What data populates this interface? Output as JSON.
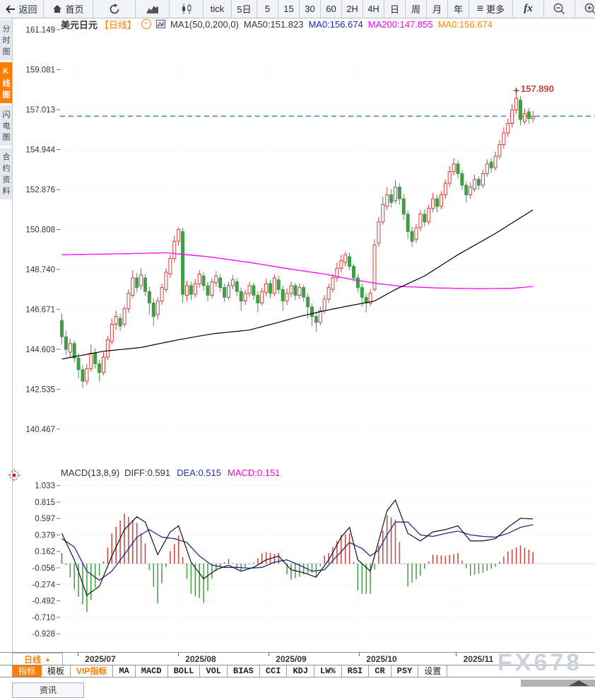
{
  "toolbar": {
    "back": "返回",
    "home": "首页",
    "periods": [
      "tick",
      "5日",
      "5",
      "15",
      "30",
      "60",
      "2H",
      "4H",
      "日",
      "周",
      "月",
      "年"
    ],
    "more": "更多",
    "fx": "fx"
  },
  "sidebar": {
    "items": [
      {
        "id": "time-share",
        "label": "分时图",
        "active": false
      },
      {
        "id": "kline",
        "label": "K线图",
        "active": true
      },
      {
        "id": "lightning",
        "label": "闪电图",
        "active": false
      },
      {
        "id": "contract-info",
        "label": "合约资料",
        "active": false
      }
    ]
  },
  "legend": {
    "symbol": "美元日元",
    "period_tag": "【日线】",
    "ma_settings": "MA1(50,0,200,0)",
    "ma50": "MA50:151.823",
    "ma0_blue": "MA0:156.674",
    "ma200": "MA200:147.855",
    "ma0_orange": "MA0:156.674"
  },
  "macd_legend": {
    "title": "MACD(13,8,9)",
    "diff": "DIFF:0.591",
    "dea": "DEA:0.515",
    "macd": "MACD:0.151"
  },
  "price_marker": "157.890",
  "watermark": "FX678",
  "bottom": {
    "period_selector": "日线",
    "tabs": [
      {
        "id": "indicator",
        "label": "指标",
        "type": "active"
      },
      {
        "id": "template",
        "label": "模板",
        "type": "cn"
      },
      {
        "id": "vip-indicator",
        "label": "VIP指标",
        "type": "vip"
      },
      {
        "id": "ma",
        "label": "MA",
        "type": "en"
      },
      {
        "id": "macd",
        "label": "MACD",
        "type": "en"
      },
      {
        "id": "boll",
        "label": "BOLL",
        "type": "en"
      },
      {
        "id": "vol",
        "label": "VOL",
        "type": "en"
      },
      {
        "id": "bias",
        "label": "BIAS",
        "type": "en"
      },
      {
        "id": "cci",
        "label": "CCI",
        "type": "en"
      },
      {
        "id": "kdj",
        "label": "KDJ",
        "type": "en"
      },
      {
        "id": "lw",
        "label": "LW%",
        "type": "en"
      },
      {
        "id": "rsi",
        "label": "RSI",
        "type": "en"
      },
      {
        "id": "cr",
        "label": "CR",
        "type": "en"
      },
      {
        "id": "psy",
        "label": "PSY",
        "type": "en"
      },
      {
        "id": "settings",
        "label": "设置",
        "type": "cn"
      }
    ],
    "news_tab": "资讯"
  },
  "colors": {
    "up": "#c9413f",
    "down": "#3f9e46",
    "ma50": "#000000",
    "ma200": "#ff00ff",
    "diff": "#111111",
    "dea": "#1c2f8c",
    "price_line": "#2b7fd4",
    "accent": "#ff7e00",
    "marker": "#c74440"
  },
  "chart_data": {
    "type": "candlestick_with_macd",
    "symbol": "美元日元 (USD/JPY)",
    "interval": "日线 daily",
    "current_price": 156.674,
    "high_marker": {
      "index": 109,
      "price": 157.89
    },
    "y_ticks": [
      "161.149",
      "159.081",
      "157.013",
      "154.944",
      "152.876",
      "150.808",
      "148.740",
      "146.671",
      "144.603",
      "142.535",
      "140.467"
    ],
    "macd_ticks": [
      "1.033",
      "0.815",
      "0.597",
      "0.379",
      "0.162",
      "-0.056",
      "-0.274",
      "-0.492",
      "-0.710",
      "-0.928"
    ],
    "months": [
      "2025/07",
      "2025/08",
      "2025/09",
      "2025/10",
      "2025/11"
    ],
    "y_axis_range": [
      140.0,
      161.6
    ],
    "macd_axis_range": [
      -1.05,
      1.15
    ],
    "candles": [
      [
        146.1,
        146.45,
        144.85,
        145.25
      ],
      [
        145.25,
        145.55,
        144.3,
        144.6
      ],
      [
        144.45,
        145.15,
        144.2,
        144.9
      ],
      [
        144.9,
        145.05,
        143.9,
        144.15
      ],
      [
        144.15,
        144.4,
        143.1,
        143.55
      ],
      [
        143.55,
        143.8,
        142.6,
        142.95
      ],
      [
        142.95,
        143.85,
        142.75,
        143.6
      ],
      [
        143.6,
        144.85,
        143.45,
        144.4
      ],
      [
        144.4,
        144.65,
        143.6,
        143.85
      ],
      [
        143.85,
        144.05,
        142.95,
        143.4
      ],
      [
        143.4,
        144.45,
        143.25,
        144.2
      ],
      [
        144.2,
        145.3,
        144.05,
        145.1
      ],
      [
        145.0,
        146.2,
        144.85,
        145.9
      ],
      [
        145.9,
        146.6,
        145.6,
        146.3
      ],
      [
        146.2,
        146.45,
        145.55,
        145.8
      ],
      [
        145.9,
        146.85,
        145.75,
        146.7
      ],
      [
        146.7,
        147.7,
        146.5,
        147.5
      ],
      [
        147.4,
        148.7,
        147.25,
        148.3
      ],
      [
        148.3,
        148.55,
        147.55,
        147.8
      ],
      [
        147.9,
        148.8,
        147.7,
        148.45
      ],
      [
        148.3,
        148.5,
        147.35,
        147.6
      ],
      [
        147.6,
        147.85,
        146.4,
        147.0
      ],
      [
        147.0,
        147.25,
        145.8,
        146.3
      ],
      [
        146.4,
        147.3,
        146.15,
        147.1
      ],
      [
        147.1,
        148.0,
        146.9,
        147.8
      ],
      [
        147.7,
        148.8,
        147.55,
        148.6
      ],
      [
        148.5,
        149.5,
        148.3,
        149.3
      ],
      [
        149.3,
        150.5,
        149.1,
        150.2
      ],
      [
        150.2,
        150.92,
        149.95,
        150.8
      ],
      [
        150.7,
        150.9,
        147.0,
        147.45
      ],
      [
        147.4,
        148.15,
        147.1,
        147.9
      ],
      [
        147.9,
        148.1,
        147.15,
        147.45
      ],
      [
        147.45,
        148.25,
        147.3,
        148.0
      ],
      [
        148.0,
        148.7,
        147.8,
        148.5
      ],
      [
        148.4,
        148.6,
        147.65,
        147.9
      ],
      [
        147.9,
        148.1,
        147.1,
        147.4
      ],
      [
        147.4,
        148.3,
        147.25,
        148.1
      ],
      [
        148.05,
        148.65,
        147.85,
        148.4
      ],
      [
        148.3,
        148.5,
        147.55,
        147.8
      ],
      [
        147.8,
        148.0,
        147.05,
        147.3
      ],
      [
        147.3,
        148.1,
        147.15,
        147.9
      ],
      [
        147.9,
        148.45,
        147.7,
        148.2
      ],
      [
        148.1,
        148.3,
        147.35,
        147.6
      ],
      [
        147.6,
        147.8,
        146.6,
        147.1
      ],
      [
        147.1,
        147.7,
        146.9,
        147.5
      ],
      [
        147.5,
        148.1,
        147.3,
        147.9
      ],
      [
        147.9,
        148.05,
        147.15,
        147.4
      ],
      [
        147.4,
        147.6,
        146.5,
        147.0
      ],
      [
        147.0,
        147.8,
        146.85,
        147.6
      ],
      [
        147.55,
        148.25,
        147.35,
        148.0
      ],
      [
        148.0,
        148.2,
        147.25,
        147.5
      ],
      [
        147.5,
        148.5,
        147.35,
        148.3
      ],
      [
        148.2,
        148.4,
        147.45,
        147.7
      ],
      [
        147.7,
        147.9,
        146.6,
        147.1
      ],
      [
        147.1,
        147.75,
        146.9,
        147.5
      ],
      [
        147.5,
        148.1,
        147.3,
        147.9
      ],
      [
        147.9,
        148.05,
        147.15,
        147.4
      ],
      [
        147.4,
        148.0,
        147.2,
        147.8
      ],
      [
        147.8,
        147.95,
        147.05,
        147.3
      ],
      [
        147.3,
        147.5,
        146.2,
        146.8
      ],
      [
        146.8,
        147.0,
        145.8,
        146.3
      ],
      [
        146.3,
        146.55,
        145.5,
        146.0
      ],
      [
        146.0,
        146.8,
        145.85,
        146.6
      ],
      [
        146.6,
        147.4,
        146.45,
        147.2
      ],
      [
        147.2,
        148.0,
        147.0,
        147.8
      ],
      [
        147.7,
        148.5,
        147.55,
        148.3
      ],
      [
        148.3,
        149.1,
        148.1,
        148.8
      ],
      [
        148.8,
        149.5,
        148.6,
        149.2
      ],
      [
        149.1,
        149.65,
        148.9,
        149.5
      ],
      [
        149.4,
        149.6,
        148.7,
        148.9
      ],
      [
        148.9,
        149.05,
        148.1,
        148.3
      ],
      [
        148.3,
        148.5,
        147.55,
        147.8
      ],
      [
        147.8,
        148.0,
        146.8,
        147.3
      ],
      [
        147.3,
        147.5,
        146.5,
        147.0
      ],
      [
        147.0,
        147.7,
        146.85,
        147.5
      ],
      [
        147.7,
        150.3,
        147.6,
        150.0
      ],
      [
        150.1,
        151.45,
        149.9,
        151.2
      ],
      [
        151.2,
        152.5,
        151.05,
        152.1
      ],
      [
        152.0,
        153.0,
        151.8,
        152.6
      ],
      [
        152.6,
        152.9,
        151.95,
        152.2
      ],
      [
        152.3,
        153.35,
        152.15,
        153.0
      ],
      [
        153.0,
        153.2,
        152.1,
        152.4
      ],
      [
        152.4,
        152.65,
        151.3,
        151.6
      ],
      [
        151.6,
        151.8,
        150.3,
        150.7
      ],
      [
        150.7,
        150.95,
        149.9,
        150.2
      ],
      [
        150.3,
        151.1,
        150.1,
        150.9
      ],
      [
        150.9,
        151.8,
        150.7,
        151.6
      ],
      [
        151.6,
        151.85,
        150.95,
        151.2
      ],
      [
        151.2,
        152.1,
        151.05,
        151.9
      ],
      [
        151.9,
        152.7,
        151.7,
        152.4
      ],
      [
        152.4,
        152.6,
        151.7,
        152.0
      ],
      [
        152.0,
        152.8,
        151.85,
        152.6
      ],
      [
        152.6,
        153.4,
        152.4,
        153.2
      ],
      [
        153.2,
        154.1,
        153.0,
        153.8
      ],
      [
        153.8,
        154.5,
        153.6,
        154.2
      ],
      [
        154.2,
        154.4,
        153.45,
        153.7
      ],
      [
        153.7,
        153.9,
        152.85,
        153.1
      ],
      [
        153.1,
        153.3,
        152.2,
        152.6
      ],
      [
        152.6,
        153.25,
        152.4,
        153.0
      ],
      [
        152.9,
        153.65,
        152.75,
        153.4
      ],
      [
        153.4,
        153.55,
        152.85,
        153.1
      ],
      [
        153.1,
        153.9,
        152.95,
        153.7
      ],
      [
        153.7,
        154.45,
        153.55,
        154.2
      ],
      [
        154.3,
        154.5,
        153.75,
        154.0
      ],
      [
        154.0,
        154.85,
        153.85,
        154.6
      ],
      [
        154.6,
        155.45,
        154.45,
        155.2
      ],
      [
        155.2,
        156.1,
        155.0,
        155.8
      ],
      [
        155.8,
        156.55,
        155.6,
        156.3
      ],
      [
        156.3,
        157.3,
        156.1,
        157.0
      ],
      [
        157.0,
        157.89,
        156.8,
        157.6
      ],
      [
        157.5,
        157.7,
        156.2,
        156.5
      ],
      [
        156.4,
        157.05,
        156.25,
        156.8
      ],
      [
        156.9,
        157.1,
        156.3,
        156.55
      ],
      [
        156.55,
        156.95,
        156.35,
        156.67
      ]
    ],
    "ma50": [
      [
        0,
        144.1
      ],
      [
        10,
        144.5
      ],
      [
        19,
        144.7
      ],
      [
        28,
        145.1
      ],
      [
        36,
        145.4
      ],
      [
        45,
        145.6
      ],
      [
        52,
        146.0
      ],
      [
        57,
        146.3
      ],
      [
        63,
        146.6
      ],
      [
        70,
        146.9
      ],
      [
        75,
        147.1
      ],
      [
        80,
        147.7
      ],
      [
        87,
        148.4
      ],
      [
        95,
        149.5
      ],
      [
        104,
        150.6
      ],
      [
        113,
        151.82
      ]
    ],
    "ma200": [
      [
        0,
        149.5
      ],
      [
        15,
        149.55
      ],
      [
        25,
        149.6
      ],
      [
        35,
        149.4
      ],
      [
        45,
        149.1
      ],
      [
        55,
        148.75
      ],
      [
        63,
        148.5
      ],
      [
        70,
        148.2
      ],
      [
        76,
        148.0
      ],
      [
        82,
        147.85
      ],
      [
        90,
        147.78
      ],
      [
        100,
        147.74
      ],
      [
        108,
        147.76
      ],
      [
        113,
        147.855
      ]
    ],
    "macd": {
      "params": "(13,8,9)",
      "hist_formula": "2*(DIFF-DEA)",
      "last": {
        "diff": 0.591,
        "dea": 0.515,
        "macd": 0.151
      },
      "diff_points": [
        [
          0,
          0.4
        ],
        [
          3,
          0.05
        ],
        [
          6,
          -0.42
        ],
        [
          9,
          -0.3
        ],
        [
          12,
          0.1
        ],
        [
          15,
          0.45
        ],
        [
          18,
          0.62
        ],
        [
          20,
          0.55
        ],
        [
          23,
          0.12
        ],
        [
          26,
          0.42
        ],
        [
          28,
          0.5
        ],
        [
          31,
          0.02
        ],
        [
          34,
          -0.2
        ],
        [
          37,
          -0.08
        ],
        [
          40,
          -0.02
        ],
        [
          43,
          -0.1
        ],
        [
          46,
          -0.05
        ],
        [
          49,
          0.05
        ],
        [
          52,
          0.1
        ],
        [
          55,
          -0.08
        ],
        [
          58,
          -0.12
        ],
        [
          61,
          -0.18
        ],
        [
          64,
          0.05
        ],
        [
          67,
          0.35
        ],
        [
          69,
          0.48
        ],
        [
          71,
          0.05
        ],
        [
          74,
          -0.1
        ],
        [
          76,
          0.3
        ],
        [
          78,
          0.7
        ],
        [
          80,
          0.84
        ],
        [
          83,
          0.4
        ],
        [
          86,
          0.3
        ],
        [
          89,
          0.42
        ],
        [
          92,
          0.45
        ],
        [
          95,
          0.5
        ],
        [
          98,
          0.3
        ],
        [
          101,
          0.3
        ],
        [
          104,
          0.33
        ],
        [
          107,
          0.48
        ],
        [
          110,
          0.6
        ],
        [
          113,
          0.591
        ]
      ],
      "dea_points": [
        [
          0,
          0.33
        ],
        [
          3,
          0.22
        ],
        [
          6,
          -0.1
        ],
        [
          9,
          -0.22
        ],
        [
          12,
          -0.1
        ],
        [
          15,
          0.12
        ],
        [
          18,
          0.35
        ],
        [
          21,
          0.45
        ],
        [
          24,
          0.35
        ],
        [
          27,
          0.33
        ],
        [
          30,
          0.28
        ],
        [
          33,
          0.1
        ],
        [
          36,
          -0.02
        ],
        [
          39,
          -0.05
        ],
        [
          42,
          -0.05
        ],
        [
          45,
          -0.06
        ],
        [
          48,
          -0.05
        ],
        [
          51,
          0.02
        ],
        [
          54,
          0.05
        ],
        [
          57,
          -0.02
        ],
        [
          60,
          -0.1
        ],
        [
          63,
          -0.08
        ],
        [
          66,
          0.1
        ],
        [
          69,
          0.28
        ],
        [
          72,
          0.2
        ],
        [
          74,
          0.1
        ],
        [
          76,
          0.18
        ],
        [
          78,
          0.38
        ],
        [
          80,
          0.55
        ],
        [
          83,
          0.55
        ],
        [
          86,
          0.38
        ],
        [
          89,
          0.36
        ],
        [
          92,
          0.4
        ],
        [
          95,
          0.43
        ],
        [
          98,
          0.38
        ],
        [
          101,
          0.36
        ],
        [
          104,
          0.35
        ],
        [
          107,
          0.4
        ],
        [
          110,
          0.48
        ],
        [
          113,
          0.515
        ]
      ]
    }
  }
}
